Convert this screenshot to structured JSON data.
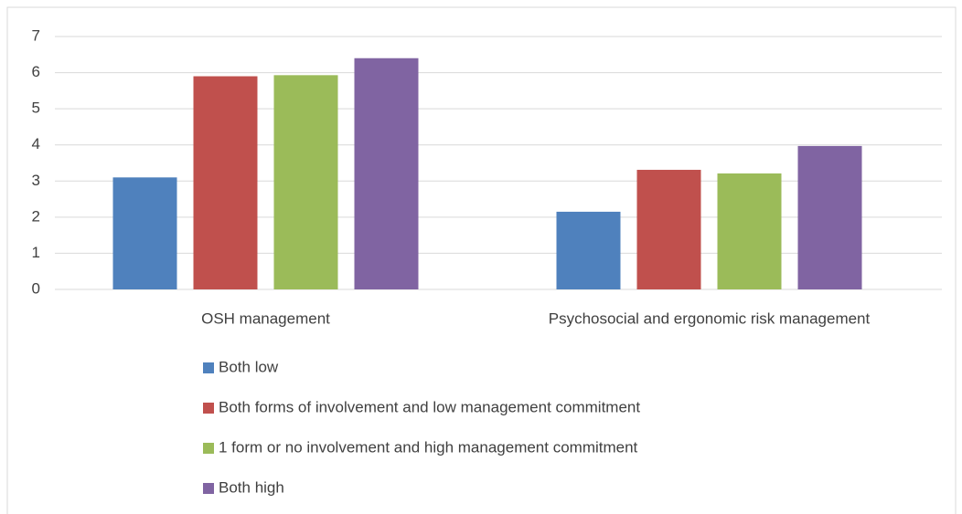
{
  "chart_data": {
    "type": "bar",
    "categories": [
      "OSH management",
      "Psychosocial and ergonomic risk management"
    ],
    "series": [
      {
        "name": "Both low",
        "color": "#4f81bd",
        "values": [
          3.1,
          2.15
        ]
      },
      {
        "name": "Both forms of involvement and low management commitment",
        "color": "#c0504d",
        "values": [
          5.9,
          3.31
        ]
      },
      {
        "name": "1 form or no involvement and high management commitment",
        "color": "#9bbb59",
        "values": [
          5.93,
          3.21
        ]
      },
      {
        "name": "Both high",
        "color": "#8064a2",
        "values": [
          6.4,
          3.97
        ]
      }
    ],
    "ylim": [
      0,
      7
    ],
    "yticks": [
      0,
      1,
      2,
      3,
      4,
      5,
      6,
      7
    ],
    "grid": true,
    "legend": "bottom"
  }
}
